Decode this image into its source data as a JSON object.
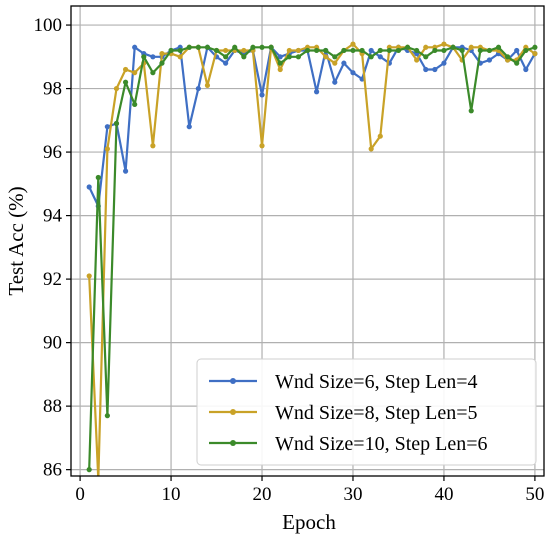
{
  "chart_data": {
    "type": "line",
    "xlabel": "Epoch",
    "ylabel": "Test Acc (%)",
    "xlim": [
      -1,
      51
    ],
    "ylim": [
      85.8,
      100.6
    ],
    "xticks": [
      0,
      10,
      20,
      30,
      40,
      50
    ],
    "yticks": [
      86,
      88,
      90,
      92,
      94,
      96,
      98,
      100
    ],
    "grid": true,
    "legend_position": "bottom-right",
    "x": [
      1,
      2,
      3,
      4,
      5,
      6,
      7,
      8,
      9,
      10,
      11,
      12,
      13,
      14,
      15,
      16,
      17,
      18,
      19,
      20,
      21,
      22,
      23,
      24,
      25,
      26,
      27,
      28,
      29,
      30,
      31,
      32,
      33,
      34,
      35,
      36,
      37,
      38,
      39,
      40,
      41,
      42,
      43,
      44,
      45,
      46,
      47,
      48,
      49,
      50
    ],
    "series": [
      {
        "name": "Wnd Size=6, Step Len=4",
        "color": "#3f6fc4",
        "values": [
          94.9,
          94.3,
          96.8,
          96.9,
          95.4,
          99.3,
          99.1,
          99.0,
          99.0,
          99.2,
          99.3,
          96.8,
          98.0,
          99.3,
          99.0,
          98.8,
          99.2,
          99.1,
          99.2,
          97.8,
          99.3,
          99.0,
          99.1,
          99.2,
          99.2,
          97.9,
          99.2,
          98.2,
          98.8,
          98.5,
          98.3,
          99.2,
          99.0,
          98.8,
          99.3,
          99.2,
          99.1,
          98.6,
          98.6,
          98.8,
          99.3,
          99.3,
          99.2,
          98.8,
          98.9,
          99.1,
          98.9,
          99.2,
          98.6,
          99.1
        ]
      },
      {
        "name": "Wnd Size=8, Step Len=5",
        "color": "#c9a227",
        "values": [
          92.1,
          85.7,
          96.1,
          98.0,
          98.6,
          98.5,
          98.8,
          96.2,
          99.1,
          99.1,
          99.0,
          99.3,
          99.3,
          98.1,
          99.2,
          99.2,
          99.2,
          99.2,
          99.2,
          96.2,
          99.3,
          98.6,
          99.2,
          99.2,
          99.3,
          99.3,
          99.0,
          98.8,
          99.2,
          99.4,
          99.1,
          96.1,
          96.5,
          99.3,
          99.3,
          99.3,
          98.9,
          99.3,
          99.3,
          99.4,
          99.3,
          98.9,
          99.3,
          99.3,
          99.2,
          99.2,
          98.9,
          98.9,
          99.3,
          99.1
        ]
      },
      {
        "name": "Wnd Size=10, Step Len=6",
        "color": "#3b8a2a",
        "values": [
          86.0,
          95.2,
          87.7,
          96.9,
          98.2,
          97.5,
          99.0,
          98.5,
          98.8,
          99.2,
          99.2,
          99.3,
          99.3,
          99.3,
          99.2,
          99.0,
          99.3,
          99.0,
          99.3,
          99.3,
          99.3,
          98.8,
          99.0,
          99.0,
          99.2,
          99.2,
          99.2,
          99.0,
          99.2,
          99.2,
          99.2,
          99.0,
          99.2,
          99.2,
          99.2,
          99.3,
          99.2,
          99.0,
          99.2,
          99.2,
          99.3,
          99.2,
          97.3,
          99.2,
          99.2,
          99.3,
          99.0,
          98.8,
          99.2,
          99.3
        ]
      }
    ]
  }
}
